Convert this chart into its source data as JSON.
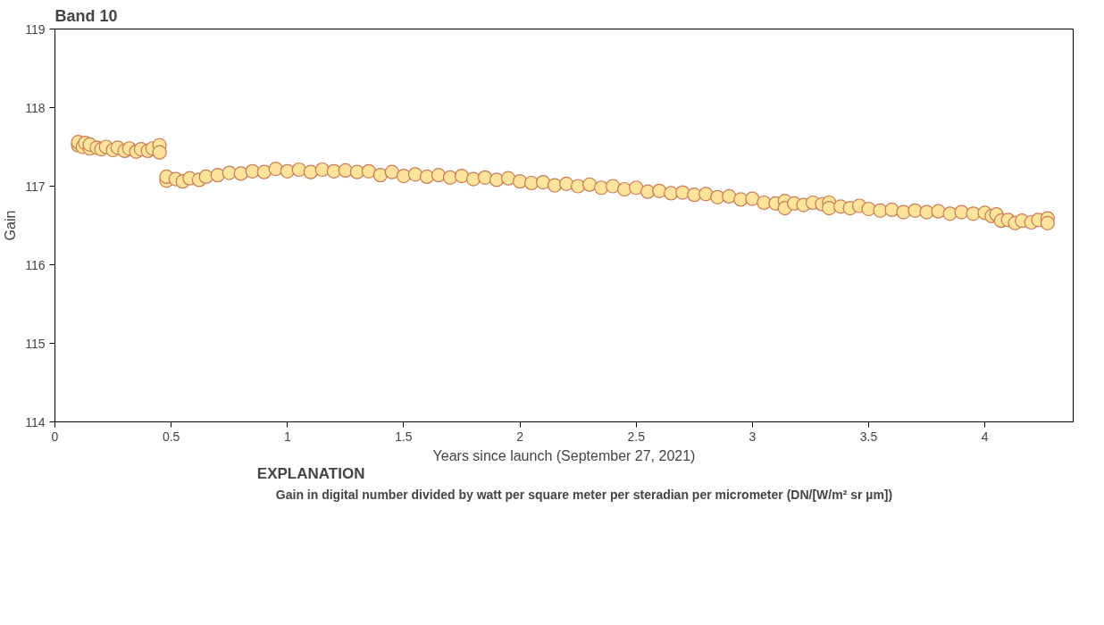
{
  "chart_data": {
    "type": "scatter",
    "title": "Band 10",
    "xlabel": "Years since launch (September 27, 2021)",
    "ylabel": "Gain",
    "legend_title": "EXPLANATION",
    "legend": "bottom",
    "marker": "circle",
    "grid": false,
    "xlim": [
      0,
      4.38
    ],
    "xticks": [
      0,
      0.5,
      1,
      1.5,
      2,
      2.5,
      3,
      3.5,
      4
    ],
    "ylim": [
      114,
      119
    ],
    "yticks": [
      114,
      115,
      116,
      117,
      118,
      119
    ],
    "series": [
      {
        "name": "Gain in digital number divided by watt per square meter per steradian per micrometer (DN/[W/m² sr µm])",
        "color": "#fde49a",
        "x": [
          0.1,
          0.1,
          0.12,
          0.13,
          0.15,
          0.15,
          0.18,
          0.2,
          0.22,
          0.25,
          0.27,
          0.3,
          0.32,
          0.35,
          0.37,
          0.4,
          0.42,
          0.45,
          0.45,
          0.48,
          0.48,
          0.52,
          0.55,
          0.58,
          0.62,
          0.65,
          0.7,
          0.75,
          0.8,
          0.85,
          0.9,
          0.95,
          1.0,
          1.05,
          1.1,
          1.15,
          1.2,
          1.25,
          1.3,
          1.35,
          1.4,
          1.45,
          1.5,
          1.55,
          1.6,
          1.65,
          1.7,
          1.75,
          1.8,
          1.85,
          1.9,
          1.95,
          2.0,
          2.05,
          2.1,
          2.15,
          2.2,
          2.25,
          2.3,
          2.35,
          2.4,
          2.45,
          2.5,
          2.55,
          2.6,
          2.65,
          2.7,
          2.75,
          2.8,
          2.85,
          2.9,
          2.95,
          3.0,
          3.05,
          3.1,
          3.14,
          3.14,
          3.18,
          3.22,
          3.26,
          3.3,
          3.33,
          3.33,
          3.38,
          3.42,
          3.46,
          3.5,
          3.55,
          3.6,
          3.65,
          3.7,
          3.75,
          3.8,
          3.85,
          3.9,
          3.95,
          4.0,
          4.03,
          4.05,
          4.07,
          4.1,
          4.13,
          4.16,
          4.2,
          4.23,
          4.27,
          4.27
        ],
        "values": [
          117.52,
          117.56,
          117.5,
          117.55,
          117.48,
          117.53,
          117.49,
          117.47,
          117.5,
          117.46,
          117.49,
          117.45,
          117.48,
          117.44,
          117.47,
          117.45,
          117.48,
          117.52,
          117.43,
          117.07,
          117.12,
          117.09,
          117.06,
          117.1,
          117.08,
          117.12,
          117.14,
          117.17,
          117.16,
          117.19,
          117.18,
          117.22,
          117.19,
          117.21,
          117.18,
          117.21,
          117.19,
          117.2,
          117.18,
          117.19,
          117.14,
          117.18,
          117.13,
          117.15,
          117.12,
          117.14,
          117.11,
          117.13,
          117.09,
          117.11,
          117.08,
          117.1,
          117.06,
          117.04,
          117.05,
          117.01,
          117.03,
          117.0,
          117.02,
          116.98,
          117.0,
          116.96,
          116.98,
          116.93,
          116.94,
          116.91,
          116.92,
          116.89,
          116.9,
          116.86,
          116.87,
          116.83,
          116.84,
          116.79,
          116.78,
          116.81,
          116.72,
          116.78,
          116.76,
          116.79,
          116.77,
          116.79,
          116.72,
          116.74,
          116.72,
          116.75,
          116.71,
          116.69,
          116.7,
          116.67,
          116.69,
          116.67,
          116.68,
          116.65,
          116.67,
          116.65,
          116.66,
          116.62,
          116.64,
          116.56,
          116.57,
          116.53,
          116.56,
          116.54,
          116.57,
          116.59,
          116.53
        ]
      }
    ]
  }
}
